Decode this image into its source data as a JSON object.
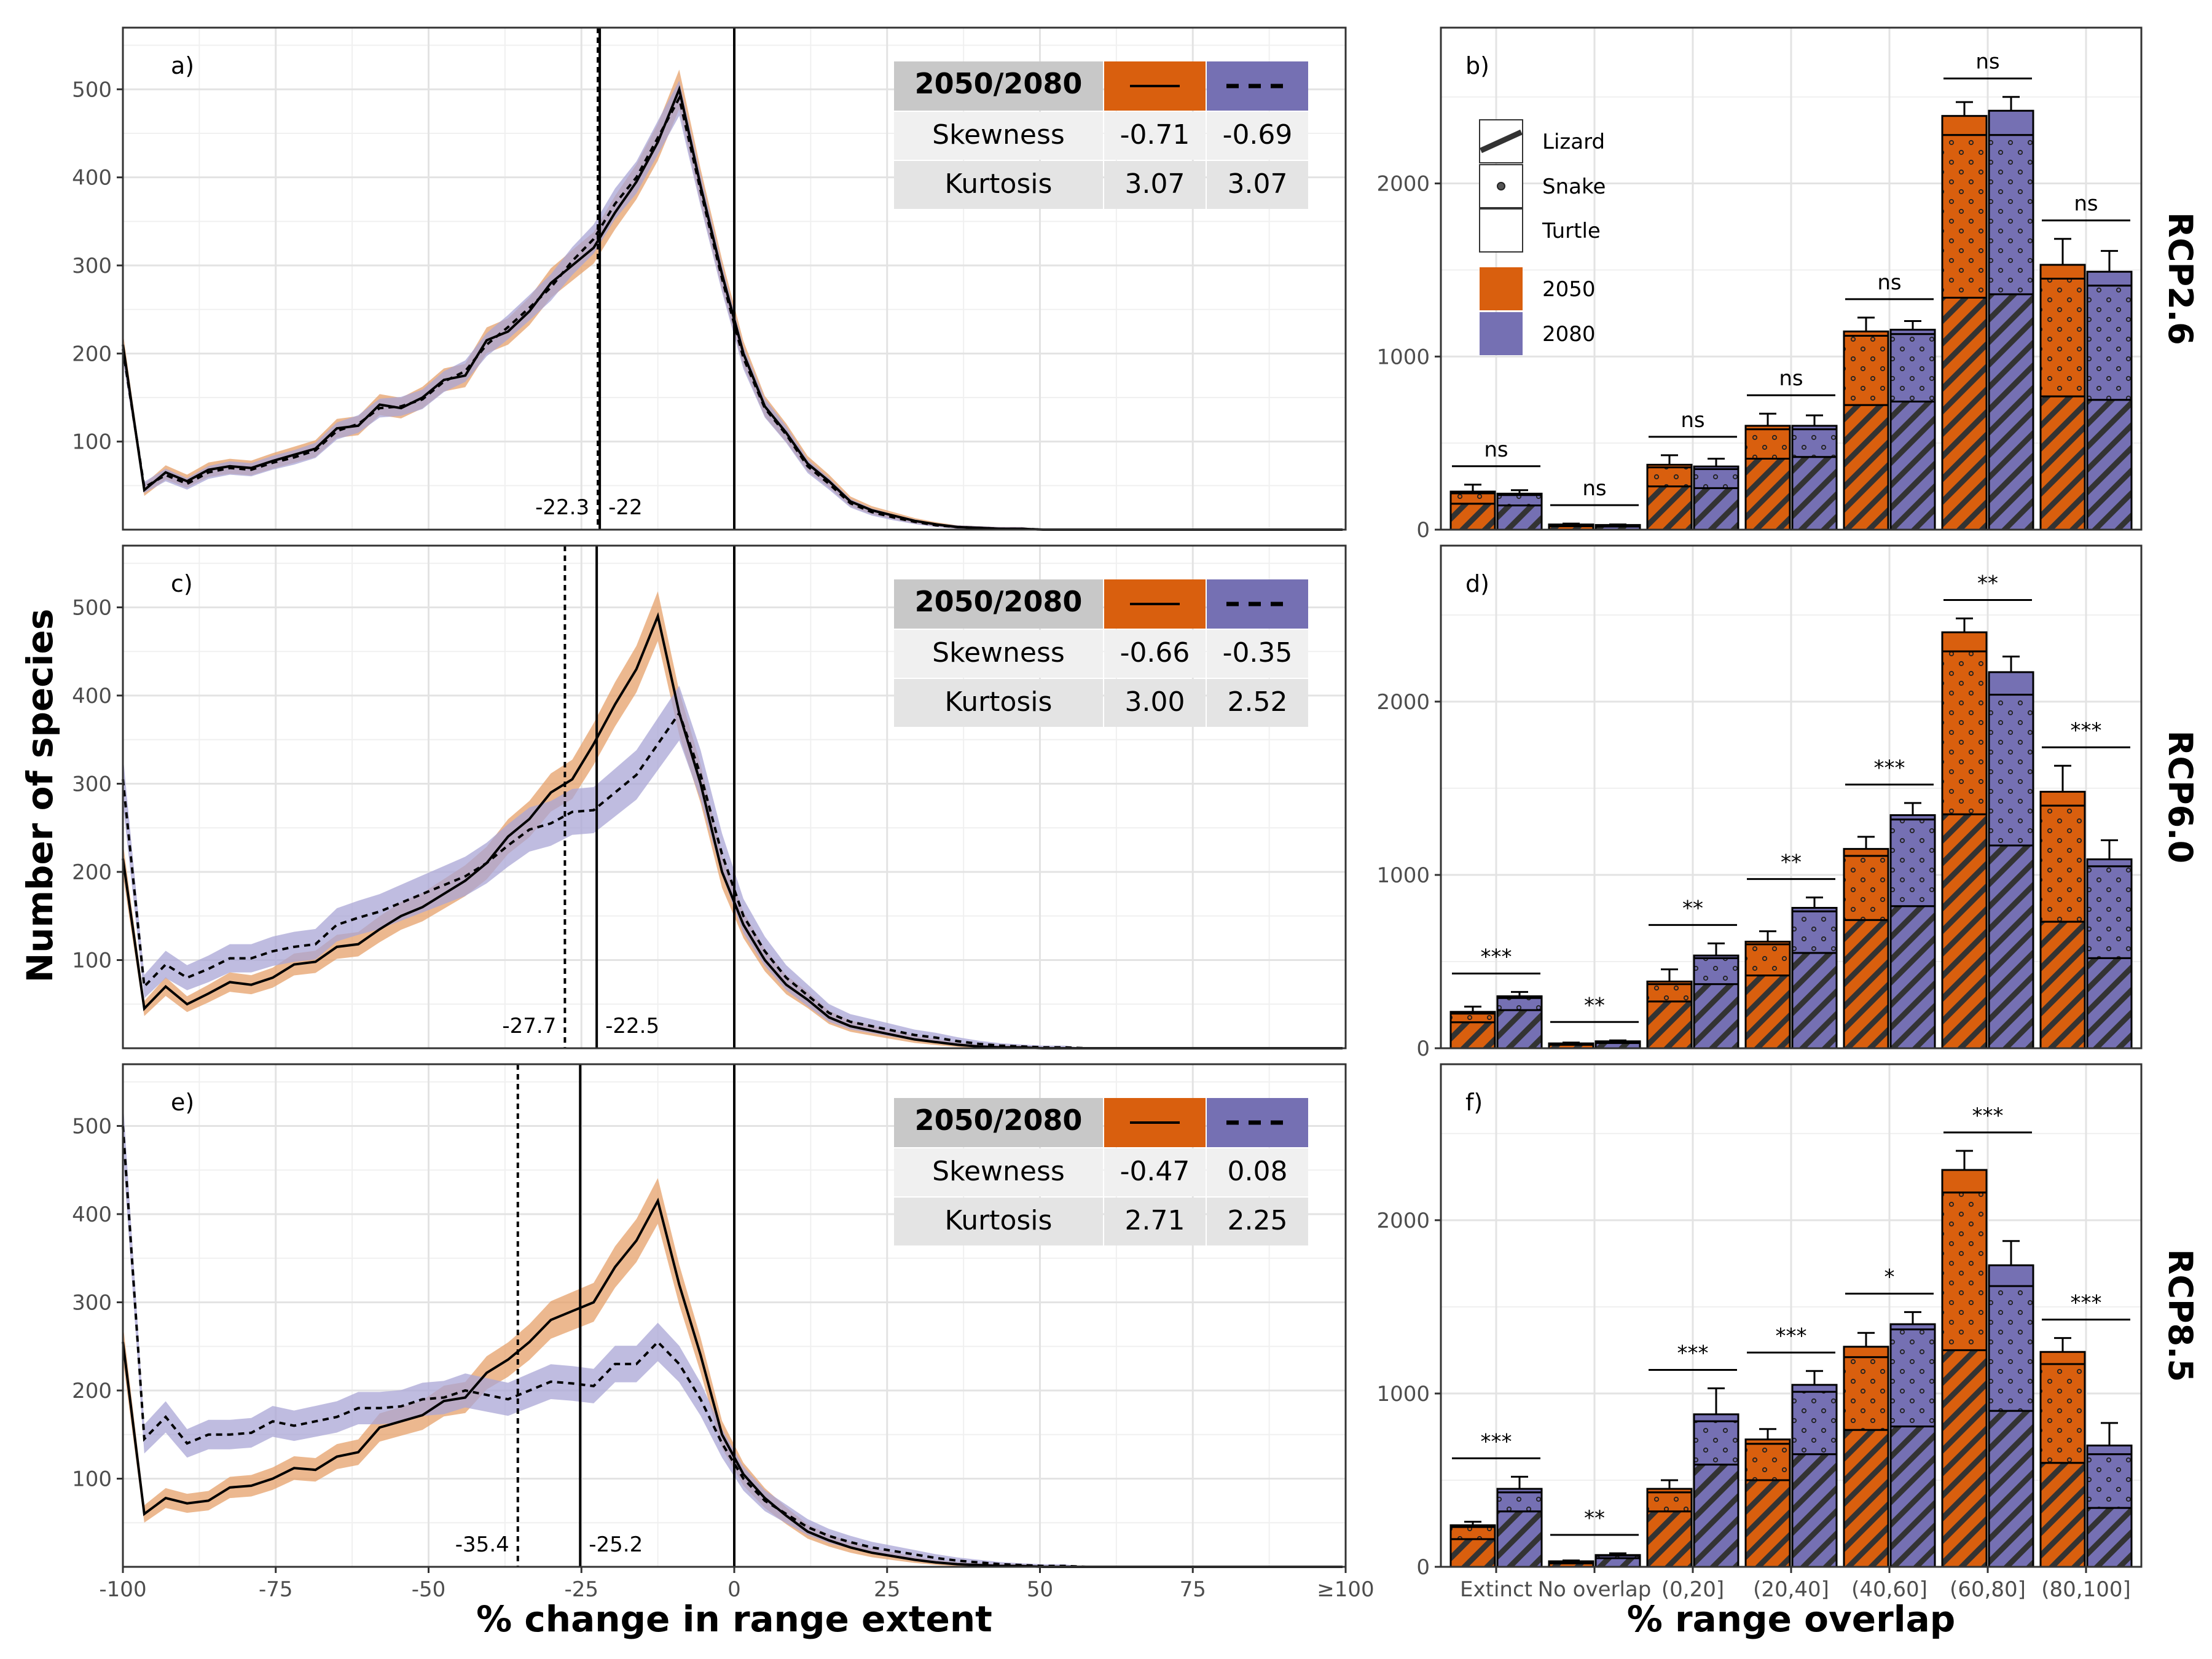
{
  "figure": {
    "y_title": "Number of species",
    "x_title_left": "% change in range extent",
    "x_title_right": "% range overlap"
  },
  "colors": {
    "y2050": "#d95f0e",
    "y2080": "#7570b3",
    "band2050": "#e6a06a",
    "band2080": "#a9a5d6"
  },
  "left_axis": {
    "x_ticks": [
      -100,
      -75,
      -50,
      -25,
      0,
      25,
      50,
      75,
      100
    ],
    "x_tick_labels": [
      "-100",
      "-75",
      "-50",
      "-25",
      "0",
      "25",
      "50",
      "75",
      "≥100"
    ],
    "y_ticks": [
      100,
      200,
      300,
      400,
      500
    ],
    "ylim": [
      0,
      570
    ]
  },
  "right_axis": {
    "categories": [
      "Extinct",
      "No overlap",
      "(0,20]",
      "(20,40]",
      "(40,60]",
      "(60,80]",
      "(80,100]"
    ],
    "y_ticks": [
      0,
      1000,
      2000
    ],
    "ylim": [
      0,
      2900
    ]
  },
  "legend": {
    "lizard": "Lizard",
    "snake": "Snake",
    "turtle": "Turtle",
    "y2050": "2050",
    "y2080": "2080"
  },
  "table_header": "2050/2080",
  "chart_data": [
    {
      "type": "line",
      "panel": "a)",
      "scenario": "RCP2.6",
      "x_step": 3.5,
      "series": [
        {
          "name": "2050",
          "style": "solid",
          "values": [
            210,
            45,
            65,
            55,
            68,
            72,
            70,
            78,
            85,
            92,
            115,
            118,
            142,
            138,
            150,
            170,
            175,
            215,
            225,
            248,
            280,
            300,
            320,
            360,
            395,
            440,
            500,
            390,
            290,
            200,
            140,
            110,
            75,
            55,
            32,
            22,
            16,
            10,
            6,
            3,
            2,
            1,
            1,
            0,
            0,
            0,
            0,
            0,
            0,
            0,
            0,
            0,
            0,
            0,
            0,
            0,
            0,
            0
          ]
        },
        {
          "name": "2080",
          "style": "dashed",
          "values": [
            205,
            48,
            62,
            52,
            65,
            70,
            68,
            76,
            82,
            90,
            112,
            120,
            138,
            140,
            148,
            168,
            180,
            210,
            230,
            252,
            275,
            305,
            330,
            370,
            400,
            445,
            490,
            385,
            285,
            195,
            138,
            108,
            72,
            52,
            30,
            20,
            14,
            9,
            5,
            3,
            2,
            1,
            1,
            0,
            0,
            0,
            0,
            0,
            0,
            0,
            0,
            0,
            0,
            0,
            0,
            0,
            0,
            0
          ]
        }
      ],
      "band_2050": 22,
      "band_2080": 20,
      "vlines": [
        {
          "x": -22.3,
          "label": "-22.3",
          "style": "dashed"
        },
        {
          "x": -22,
          "label": "-22",
          "style": "solid"
        }
      ],
      "table": {
        "skewness": [
          "-0.71",
          "-0.69"
        ],
        "kurtosis": [
          "3.07",
          "3.07"
        ],
        "skew_label": "Skewness",
        "kurt_label": "Kurtosis"
      }
    },
    {
      "type": "line",
      "panel": "c)",
      "scenario": "RCP6.0",
      "x_step": 3.5,
      "series": [
        {
          "name": "2050",
          "style": "solid",
          "values": [
            215,
            45,
            70,
            50,
            62,
            75,
            72,
            80,
            95,
            98,
            115,
            118,
            135,
            150,
            160,
            175,
            190,
            210,
            240,
            260,
            290,
            305,
            345,
            390,
            430,
            490,
            380,
            300,
            200,
            140,
            100,
            72,
            55,
            35,
            25,
            20,
            15,
            10,
            7,
            4,
            2,
            1,
            1,
            0,
            0,
            0,
            0,
            0,
            0,
            0,
            0,
            0,
            0,
            0,
            0,
            0,
            0,
            0
          ]
        },
        {
          "name": "2080",
          "style": "dashed",
          "values": [
            305,
            70,
            95,
            80,
            90,
            102,
            102,
            110,
            115,
            118,
            140,
            148,
            155,
            165,
            175,
            185,
            195,
            210,
            230,
            248,
            255,
            268,
            270,
            290,
            310,
            345,
            380,
            310,
            220,
            150,
            110,
            80,
            60,
            40,
            30,
            25,
            20,
            15,
            12,
            8,
            5,
            3,
            2,
            1,
            1,
            0,
            0,
            0,
            0,
            0,
            0,
            0,
            0,
            0,
            0,
            0,
            0,
            0
          ]
        }
      ],
      "band_2050": 28,
      "band_2080": 35,
      "vlines": [
        {
          "x": -27.7,
          "label": "-27.7",
          "style": "dashed"
        },
        {
          "x": -22.5,
          "label": "-22.5",
          "style": "solid"
        }
      ],
      "table": {
        "skewness": [
          "-0.66",
          "-0.35"
        ],
        "kurtosis": [
          "3.00",
          "2.52"
        ],
        "skew_label": "Skewness",
        "kurt_label": "Kurtosis"
      }
    },
    {
      "type": "line",
      "panel": "e)",
      "scenario": "RCP8.5",
      "x_step": 3.5,
      "series": [
        {
          "name": "2050",
          "style": "solid",
          "values": [
            255,
            60,
            78,
            72,
            75,
            90,
            92,
            100,
            112,
            110,
            125,
            130,
            158,
            165,
            172,
            188,
            192,
            220,
            235,
            255,
            280,
            290,
            300,
            340,
            370,
            415,
            320,
            240,
            150,
            105,
            78,
            58,
            40,
            30,
            22,
            16,
            12,
            8,
            5,
            3,
            2,
            1,
            1,
            0,
            0,
            0,
            0,
            0,
            0,
            0,
            0,
            0,
            0,
            0,
            0,
            0,
            0,
            0
          ]
        },
        {
          "name": "2080",
          "style": "dashed",
          "values": [
            500,
            145,
            170,
            140,
            150,
            150,
            152,
            165,
            160,
            165,
            170,
            180,
            180,
            182,
            190,
            192,
            200,
            195,
            190,
            200,
            210,
            208,
            205,
            230,
            230,
            255,
            230,
            190,
            140,
            100,
            75,
            60,
            45,
            35,
            28,
            22,
            18,
            14,
            10,
            7,
            5,
            3,
            2,
            1,
            1,
            0,
            0,
            0,
            0,
            0,
            0,
            0,
            0,
            0,
            0,
            0,
            0,
            0
          ]
        }
      ],
      "band_2050": 28,
      "band_2080": 30,
      "vlines": [
        {
          "x": -35.4,
          "label": "-35.4",
          "style": "dashed"
        },
        {
          "x": -25.2,
          "label": "-25.2",
          "style": "solid"
        }
      ],
      "table": {
        "skewness": [
          "-0.47",
          "0.08"
        ],
        "kurtosis": [
          "2.71",
          "2.25"
        ],
        "skew_label": "Skewness",
        "kurt_label": "Kurtosis"
      }
    },
    {
      "type": "bar",
      "panel": "b)",
      "scenario": "RCP2.6",
      "stack_order": [
        "Lizard",
        "Snake",
        "Turtle"
      ],
      "y2050": {
        "lizard": [
          150,
          20,
          250,
          410,
          720,
          1340,
          770
        ],
        "snake": [
          60,
          8,
          110,
          170,
          400,
          940,
          680
        ],
        "turtle": [
          10,
          2,
          15,
          20,
          25,
          110,
          80
        ],
        "err": [
          40,
          5,
          55,
          70,
          80,
          80,
          150
        ]
      },
      "y2080": {
        "lizard": [
          140,
          18,
          240,
          420,
          740,
          1360,
          750
        ],
        "snake": [
          60,
          7,
          110,
          160,
          390,
          920,
          660
        ],
        "turtle": [
          8,
          2,
          15,
          20,
          25,
          140,
          80
        ],
        "err": [
          20,
          3,
          45,
          60,
          50,
          80,
          120
        ]
      },
      "sig": [
        "ns",
        "ns",
        "ns",
        "ns",
        "ns",
        "ns",
        "ns"
      ]
    },
    {
      "type": "bar",
      "panel": "d)",
      "scenario": "RCP6.0",
      "stack_order": [
        "Lizard",
        "Snake",
        "Turtle"
      ],
      "y2050": {
        "lizard": [
          150,
          20,
          270,
          420,
          740,
          1350,
          730
        ],
        "snake": [
          50,
          6,
          100,
          180,
          370,
          940,
          670
        ],
        "turtle": [
          10,
          2,
          15,
          15,
          40,
          110,
          80
        ],
        "err": [
          30,
          5,
          70,
          60,
          70,
          80,
          150
        ]
      },
      "y2080": {
        "lizard": [
          220,
          30,
          370,
          550,
          820,
          1170,
          520
        ],
        "snake": [
          70,
          8,
          150,
          240,
          500,
          870,
          530
        ],
        "turtle": [
          10,
          2,
          15,
          20,
          25,
          130,
          40
        ],
        "err": [
          25,
          5,
          70,
          60,
          70,
          90,
          110
        ]
      },
      "sig": [
        "***",
        "**",
        "**",
        "**",
        "***",
        "**",
        "***"
      ]
    },
    {
      "type": "bar",
      "panel": "f)",
      "scenario": "RCP8.5",
      "stack_order": [
        "Lizard",
        "Snake",
        "Turtle"
      ],
      "y2050": {
        "lizard": [
          160,
          20,
          320,
          500,
          790,
          1250,
          600
        ],
        "snake": [
          70,
          10,
          110,
          210,
          420,
          910,
          570
        ],
        "turtle": [
          10,
          2,
          20,
          25,
          60,
          130,
          70
        ],
        "err": [
          20,
          5,
          50,
          60,
          80,
          110,
          80
        ]
      },
      "y2080": {
        "lizard": [
          320,
          50,
          590,
          650,
          810,
          900,
          340
        ],
        "snake": [
          110,
          15,
          250,
          360,
          560,
          720,
          310
        ],
        "turtle": [
          20,
          3,
          40,
          40,
          30,
          120,
          50
        ],
        "err": [
          70,
          10,
          150,
          80,
          70,
          140,
          130
        ]
      },
      "sig": [
        "***",
        "**",
        "***",
        "***",
        "*",
        "***",
        "***"
      ]
    }
  ]
}
